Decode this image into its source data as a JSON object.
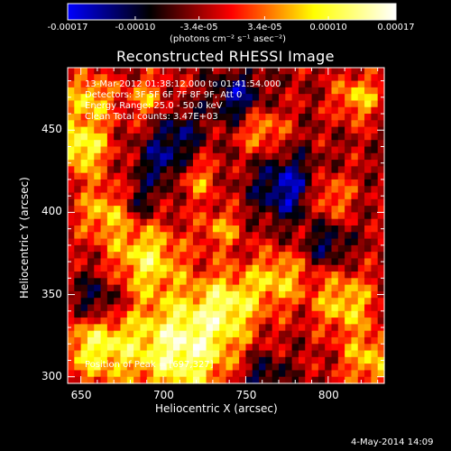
{
  "title": "Reconstructed RHESSI Image",
  "xlabel": "Heliocentric X (arcsec)",
  "ylabel": "Heliocentric Y (arcsec)",
  "info_lines": [
    "13-Mar-2012 01:38:12.000 to 01:41:54.000",
    "Detectors: 3F 5F 6F 7F 8F 9F, Att 0",
    "Energy Range: 25.0 - 50.0 keV",
    "Clean     Total counts: 3.47E+03"
  ],
  "peak_text": "Position of Peak = [697,327]",
  "date_stamp": "4-May-2014 14:09",
  "colorbar": {
    "units": "(photons cm⁻² s⁻¹ asec⁻²)",
    "tick_labels": [
      "-0.00017",
      "-0.00010",
      "-3.4e-05",
      "3.4e-05",
      "0.00010",
      "0.00017"
    ],
    "range": [
      -0.00017,
      0.00017
    ],
    "colors": [
      "#0000ff",
      "#000000",
      "#ff0000",
      "#ffff00",
      "#ffffff"
    ]
  },
  "chart_data": {
    "type": "heatmap",
    "title": "Reconstructed RHESSI Image",
    "xlabel": "Heliocentric X (arcsec)",
    "ylabel": "Heliocentric Y (arcsec)",
    "xlim": [
      642,
      834
    ],
    "ylim": [
      296,
      488
    ],
    "x_ticks": [
      650,
      700,
      750,
      800
    ],
    "y_ticks": [
      300,
      350,
      400,
      450
    ],
    "peak": [
      697,
      327
    ],
    "zlim": [
      -0.00017,
      0.00017
    ],
    "grid_size": 48,
    "hotspots": [
      {
        "x": 712,
        "y": 318,
        "amp": 0.00017,
        "r": 22
      },
      {
        "x": 660,
        "y": 320,
        "amp": 0.00013,
        "r": 16
      },
      {
        "x": 690,
        "y": 372,
        "amp": 0.00012,
        "r": 15
      },
      {
        "x": 650,
        "y": 440,
        "amp": 0.00014,
        "r": 12
      },
      {
        "x": 655,
        "y": 470,
        "amp": 0.00011,
        "r": 10
      },
      {
        "x": 665,
        "y": 400,
        "amp": 0.0001,
        "r": 12
      },
      {
        "x": 740,
        "y": 345,
        "amp": 0.00011,
        "r": 14
      },
      {
        "x": 770,
        "y": 360,
        "amp": 0.0001,
        "r": 12
      },
      {
        "x": 810,
        "y": 345,
        "amp": 0.00011,
        "r": 13
      },
      {
        "x": 825,
        "y": 310,
        "amp": 0.0001,
        "r": 12
      },
      {
        "x": 800,
        "y": 410,
        "amp": 9e-05,
        "r": 10
      },
      {
        "x": 818,
        "y": 470,
        "amp": 0.0001,
        "r": 10
      },
      {
        "x": 760,
        "y": 450,
        "amp": 9e-05,
        "r": 10
      },
      {
        "x": 720,
        "y": 420,
        "amp": 8e-05,
        "r": 9
      },
      {
        "x": 690,
        "y": 470,
        "amp": 8e-05,
        "r": 9
      },
      {
        "x": 735,
        "y": 390,
        "amp": 8e-05,
        "r": 9
      }
    ],
    "coldspots": [
      {
        "x": 775,
        "y": 415,
        "amp": -0.00012,
        "r": 14
      },
      {
        "x": 745,
        "y": 470,
        "amp": -0.0001,
        "r": 11
      },
      {
        "x": 700,
        "y": 430,
        "amp": -9e-05,
        "r": 11
      },
      {
        "x": 660,
        "y": 345,
        "amp": -0.0001,
        "r": 11
      },
      {
        "x": 760,
        "y": 300,
        "amp": -8e-05,
        "r": 10
      },
      {
        "x": 800,
        "y": 380,
        "amp": -8e-05,
        "r": 9
      },
      {
        "x": 710,
        "y": 450,
        "amp": -7e-05,
        "r": 10
      },
      {
        "x": 685,
        "y": 405,
        "amp": -7e-05,
        "r": 8
      }
    ]
  }
}
